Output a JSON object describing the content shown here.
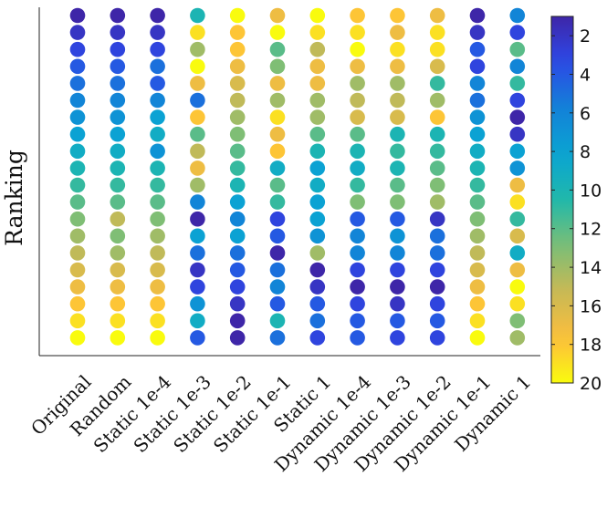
{
  "chart_data": {
    "type": "scatter",
    "title": "",
    "xlabel": "",
    "ylabel": "Ranking",
    "categories": [
      "Original",
      "Random",
      "Static 1e-4",
      "Static 1e-3",
      "Static 1e-2",
      "Static 1e-1",
      "Static 1",
      "Dynamic 1e-4",
      "Dynamic 1e-3",
      "Dynamic 1e-2",
      "Dynamic 1e-1",
      "Dynamic 1"
    ],
    "rows_top_to_bottom": 20,
    "grid": false,
    "colorbar": {
      "colormap": "parula",
      "min": 1,
      "max": 20,
      "reversed": true,
      "tick_labels": [
        "2",
        "4",
        "6",
        "8",
        "10",
        "12",
        "14",
        "16",
        "18",
        "20"
      ]
    },
    "columns": [
      {
        "name": "Original",
        "ranks": [
          1,
          2,
          3,
          4,
          5,
          6,
          7,
          8,
          9,
          10,
          11,
          12,
          13,
          14,
          15,
          16,
          17,
          18,
          19,
          20
        ]
      },
      {
        "name": "Random",
        "ranks": [
          1,
          2,
          3,
          4,
          5,
          6,
          7,
          8,
          9,
          10,
          11,
          12,
          15,
          13,
          14,
          16,
          17,
          18,
          19,
          20
        ]
      },
      {
        "name": "Static 1e-4",
        "ranks": [
          1,
          2,
          3,
          5,
          4,
          6,
          8,
          9,
          7,
          10,
          11,
          12,
          13,
          14,
          15,
          16,
          17,
          18,
          19,
          20
        ]
      },
      {
        "name": "Static 1e-3",
        "ranks": [
          10,
          19,
          14,
          20,
          17,
          5,
          18,
          12,
          15,
          17,
          14,
          6,
          1,
          8,
          5,
          2,
          3,
          7,
          9,
          4
        ]
      },
      {
        "name": "Static 1e-2",
        "ranks": [
          20,
          18,
          18,
          17,
          16,
          15,
          14,
          13,
          12,
          11,
          10,
          8,
          6,
          8,
          5,
          4,
          3,
          2,
          1,
          1
        ]
      },
      {
        "name": "Static 1e-1",
        "ranks": [
          17,
          20,
          12,
          13,
          17,
          14,
          19,
          17,
          18,
          9,
          12,
          11,
          3,
          4,
          1,
          5,
          6,
          4,
          10,
          5
        ]
      },
      {
        "name": "Static 1",
        "ranks": [
          20,
          19,
          15,
          17,
          17,
          14,
          14,
          12,
          10,
          8,
          9,
          8,
          8,
          7,
          14,
          1,
          2,
          4,
          5,
          3
        ]
      },
      {
        "name": "Dynamic 1e-4",
        "ranks": [
          18,
          19,
          20,
          17,
          14,
          15,
          16,
          12,
          10,
          9,
          11,
          13,
          4,
          6,
          6,
          3,
          1,
          3,
          4,
          4
        ]
      },
      {
        "name": "Dynamic 1e-3",
        "ranks": [
          18,
          17,
          19,
          17,
          14,
          15,
          16,
          10,
          11,
          10,
          12,
          13,
          4,
          7,
          6,
          3,
          1,
          2,
          4,
          3
        ]
      },
      {
        "name": "Dynamic 1e-2",
        "ranks": [
          17,
          19,
          19,
          16,
          11,
          14,
          18,
          10,
          11,
          12,
          13,
          14,
          2,
          5,
          5,
          3,
          1,
          3,
          4,
          3
        ]
      },
      {
        "name": "Dynamic 1e-1",
        "ranks": [
          1,
          2,
          4,
          3,
          6,
          5,
          7,
          8,
          9,
          10,
          11,
          12,
          13,
          14,
          15,
          16,
          17,
          18,
          19,
          20
        ]
      },
      {
        "name": "Dynamic 1",
        "ranks": [
          6,
          3,
          12,
          6,
          11,
          3,
          1,
          2,
          8,
          7,
          17,
          19,
          11,
          16,
          9,
          17,
          20,
          19,
          13,
          14
        ]
      }
    ]
  }
}
